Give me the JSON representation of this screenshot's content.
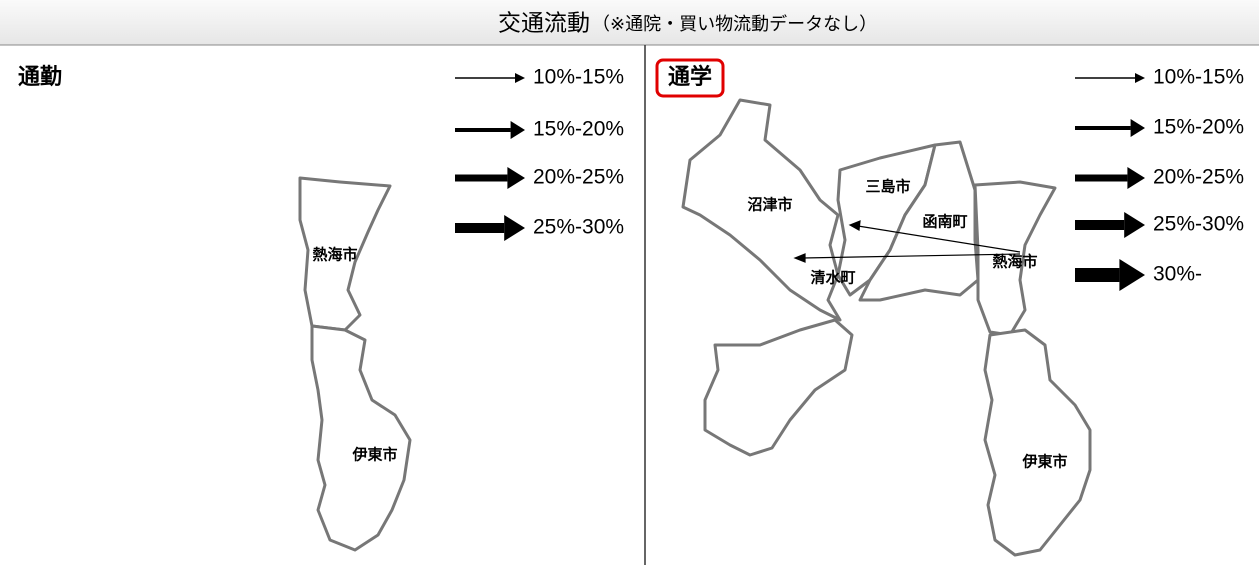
{
  "header": {
    "title": "交通流動",
    "note": "（※通院・買い物流動データなし）"
  },
  "panels": [
    {
      "title": "通勤",
      "legend": [
        "10%-15%",
        "15%-20%",
        "20%-25%",
        "25%-30%"
      ],
      "places": [
        "熱海市",
        "伊東市"
      ]
    },
    {
      "title": "通学",
      "legend": [
        "10%-15%",
        "15%-20%",
        "20%-25%",
        "25%-30%",
        "30%-"
      ],
      "places": [
        "沼津市",
        "三島市",
        "函南町",
        "熱海市",
        "清水町",
        "伊東市"
      ]
    }
  ]
}
